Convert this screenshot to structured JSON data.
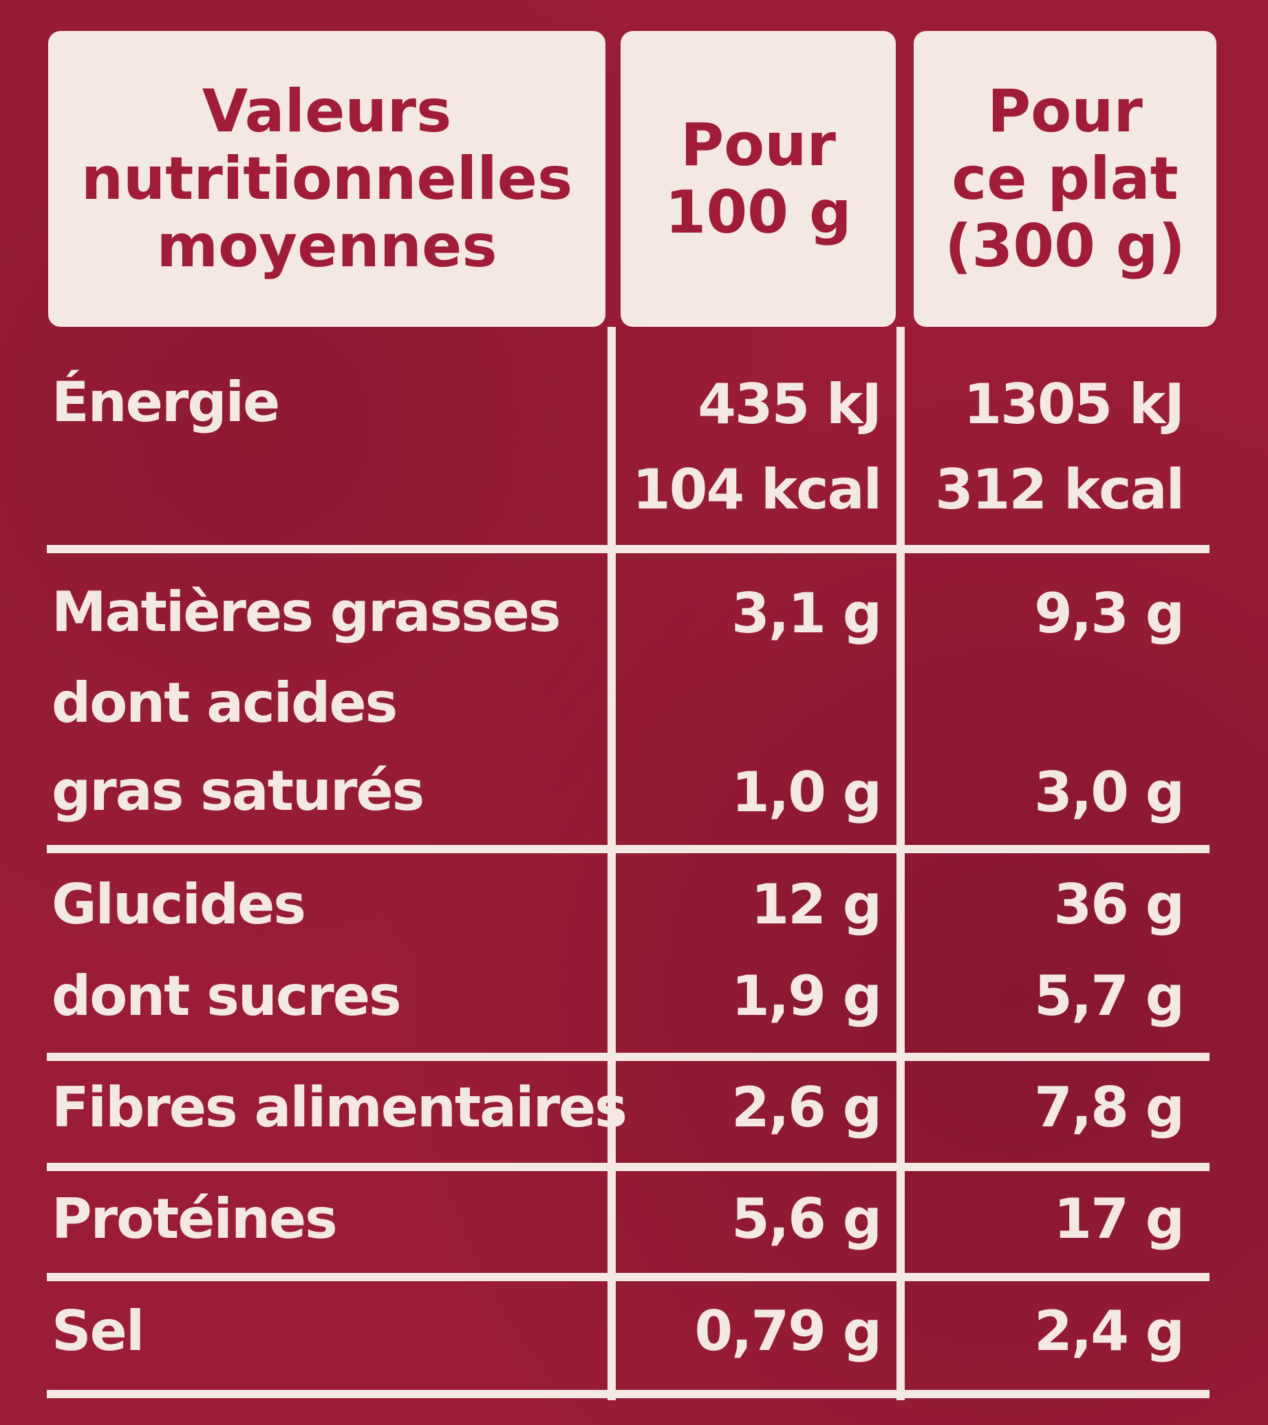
{
  "header": {
    "col1": [
      "Valeurs",
      "nutritionnelles",
      "moyennes"
    ],
    "col2": [
      "Pour",
      "100 g"
    ],
    "col3": [
      "Pour",
      "ce plat",
      "(300 g)"
    ]
  },
  "rows": [
    {
      "label": "Énergie",
      "v100": "435 kJ",
      "vplat": "1305 kJ"
    },
    {
      "label": "",
      "v100": "104 kcal",
      "vplat": "312 kcal"
    },
    {
      "label": "Matières grasses",
      "v100": "3,1 g",
      "vplat": "9,3 g"
    },
    {
      "label": "dont acides",
      "v100": "",
      "vplat": ""
    },
    {
      "label": "gras saturés",
      "v100": "1,0 g",
      "vplat": "3,0 g"
    },
    {
      "label": "Glucides",
      "v100": "12 g",
      "vplat": "36 g"
    },
    {
      "label": "dont sucres",
      "v100": "1,9 g",
      "vplat": "5,7 g"
    },
    {
      "label": "Fibres alimentaires",
      "v100": "2,6 g",
      "vplat": "7,8 g"
    },
    {
      "label": "Protéines",
      "v100": "5,6 g",
      "vplat": "17 g"
    },
    {
      "label": "Sel",
      "v100": "0,79 g",
      "vplat": "2,4 g"
    }
  ]
}
